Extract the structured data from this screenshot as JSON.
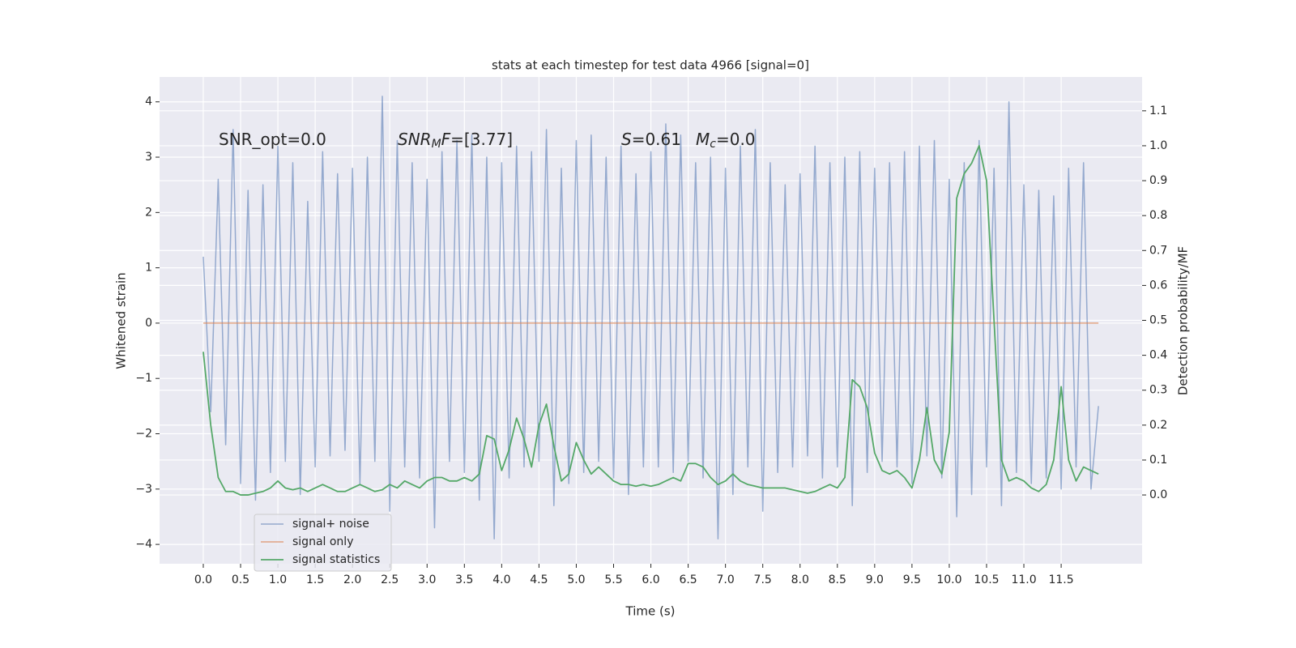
{
  "chart_data": {
    "type": "line",
    "title": "stats at each timestep for test data 4966 [signal=0]",
    "xlabel": "Time (s)",
    "ylabel": "Whitened strain",
    "y2label": "Detection probability/MF",
    "annotations": [
      [
        "SNR_opt=0.0"
      ],
      [
        "SNR",
        "M",
        "F",
        "=[3.77]"
      ],
      [
        "S",
        "=0.61"
      ],
      [
        "M",
        "c",
        "=0.0"
      ]
    ],
    "legend": "lower left",
    "grid": true,
    "xlim": [
      -0.586,
      12.585
    ],
    "ylim": [
      -4.35,
      4.45
    ],
    "y2lim": [
      -0.197,
      1.197
    ],
    "xticks": [
      {
        "value": 0,
        "label": "0.0"
      },
      {
        "value": 0.5,
        "label": "0.5"
      },
      {
        "value": 1,
        "label": "1.0"
      },
      {
        "value": 1.5,
        "label": "1.5"
      },
      {
        "value": 2,
        "label": "2.0"
      },
      {
        "value": 2.5,
        "label": "2.5"
      },
      {
        "value": 3,
        "label": "3.0"
      },
      {
        "value": 3.5,
        "label": "3.5"
      },
      {
        "value": 4,
        "label": "4.0"
      },
      {
        "value": 4.5,
        "label": "4.5"
      },
      {
        "value": 5,
        "label": "5.0"
      },
      {
        "value": 5.5,
        "label": "5.5"
      },
      {
        "value": 6,
        "label": "6.0"
      },
      {
        "value": 6.5,
        "label": "6.5"
      },
      {
        "value": 7,
        "label": "7.0"
      },
      {
        "value": 7.5,
        "label": "7.5"
      },
      {
        "value": 8,
        "label": "8.0"
      },
      {
        "value": 8.5,
        "label": "8.5"
      },
      {
        "value": 9,
        "label": "9.0"
      },
      {
        "value": 9.5,
        "label": "9.5"
      },
      {
        "value": 10,
        "label": "10.0"
      },
      {
        "value": 10.5,
        "label": "10.5"
      },
      {
        "value": 11,
        "label": "11.0"
      },
      {
        "value": 11.5,
        "label": "11.5"
      }
    ],
    "yticks": [
      {
        "value": -4,
        "label": "−4"
      },
      {
        "value": -3,
        "label": "−3"
      },
      {
        "value": -2,
        "label": "−2"
      },
      {
        "value": -1,
        "label": "−1"
      },
      0,
      1,
      2,
      3,
      4
    ],
    "y2ticks": [
      {
        "value": 0,
        "label": "0.0"
      },
      0.1,
      0.2,
      0.3,
      0.4,
      0.5,
      0.6,
      0.7,
      0.8,
      0.9,
      {
        "value": 1,
        "label": "1.0"
      },
      1.1
    ],
    "x": [
      0,
      0.1,
      0.2,
      0.3,
      0.4,
      0.5,
      0.6,
      0.7,
      0.8,
      0.9,
      1,
      1.1,
      1.2,
      1.3,
      1.4,
      1.5,
      1.6,
      1.7,
      1.8,
      1.9,
      2,
      2.1,
      2.2,
      2.3,
      2.4,
      2.5,
      2.6,
      2.7,
      2.8,
      2.9,
      3,
      3.1,
      3.2,
      3.3,
      3.4,
      3.5,
      3.6,
      3.7,
      3.8,
      3.9,
      4,
      4.1,
      4.2,
      4.3,
      4.4,
      4.5,
      4.6,
      4.7,
      4.8,
      4.9,
      5,
      5.1,
      5.2,
      5.3,
      5.4,
      5.5,
      5.6,
      5.7,
      5.8,
      5.9,
      6,
      6.1,
      6.2,
      6.3,
      6.4,
      6.5,
      6.6,
      6.7,
      6.8,
      6.9,
      7,
      7.1,
      7.2,
      7.3,
      7.4,
      7.5,
      7.6,
      7.7,
      7.8,
      7.9,
      8,
      8.1,
      8.2,
      8.3,
      8.4,
      8.5,
      8.6,
      8.7,
      8.8,
      8.9,
      9,
      9.1,
      9.2,
      9.3,
      9.4,
      9.5,
      9.6,
      9.7,
      9.8,
      9.9,
      10,
      10.1,
      10.2,
      10.3,
      10.4,
      10.5,
      10.6,
      10.7,
      10.8,
      10.9,
      11,
      11.1,
      11.2,
      11.3,
      11.4,
      11.5,
      11.6,
      11.7,
      11.8,
      11.9,
      12
    ],
    "series": [
      {
        "name": "signal+ noise",
        "color": "#4c72b0",
        "values": [
          1.2,
          -1.6,
          2.6,
          -2.2,
          3.5,
          -2.9,
          2.4,
          -3.2,
          2.5,
          -2.7,
          3.2,
          -2.5,
          2.9,
          -3.1,
          2.2,
          -2.6,
          3.1,
          -2.4,
          2.7,
          -2.3,
          2.8,
          -2.9,
          3.0,
          -2.5,
          4.1,
          -3.4,
          3.3,
          -2.6,
          2.9,
          -2.8,
          2.6,
          -3.7,
          3.1,
          -2.5,
          3.3,
          -2.7,
          3.4,
          -3.2,
          3.0,
          -3.9,
          2.9,
          -2.8,
          3.2,
          -2.6,
          3.1,
          -2.5,
          3.5,
          -3.3,
          2.8,
          -2.9,
          3.3,
          -2.7,
          3.4,
          -2.5,
          3.0,
          -2.8,
          3.2,
          -3.1,
          2.7,
          -2.6,
          3.1,
          -2.6,
          3.6,
          -2.7,
          3.4,
          -2.5,
          2.9,
          -2.8,
          3.0,
          -3.9,
          2.8,
          -3.1,
          3.2,
          -2.6,
          3.5,
          -3.4,
          2.9,
          -2.7,
          2.5,
          -2.6,
          2.7,
          -2.4,
          3.2,
          -2.8,
          2.9,
          -2.6,
          3.0,
          -3.3,
          3.1,
          -2.7,
          2.8,
          -2.5,
          2.9,
          -2.6,
          3.1,
          -2.9,
          3.2,
          -2.4,
          3.3,
          -2.8,
          2.6,
          -3.5,
          2.9,
          -3.1,
          3.3,
          -2.6,
          2.8,
          -3.3,
          4.0,
          -2.7,
          2.5,
          -2.9,
          2.4,
          -2.8,
          2.3,
          -3.0,
          2.8,
          -2.6,
          2.9,
          -3.0,
          -1.5
        ]
      },
      {
        "name": "signal only",
        "color": "#dd8452",
        "values": [
          0,
          0,
          0,
          0,
          0,
          0,
          0,
          0,
          0,
          0,
          0,
          0,
          0,
          0,
          0,
          0,
          0,
          0,
          0,
          0,
          0,
          0,
          0,
          0,
          0,
          0,
          0,
          0,
          0,
          0,
          0,
          0,
          0,
          0,
          0,
          0,
          0,
          0,
          0,
          0,
          0,
          0,
          0,
          0,
          0,
          0,
          0,
          0,
          0,
          0,
          0,
          0,
          0,
          0,
          0,
          0,
          0,
          0,
          0,
          0,
          0,
          0,
          0,
          0,
          0,
          0,
          0,
          0,
          0,
          0,
          0,
          0,
          0,
          0,
          0,
          0,
          0,
          0,
          0,
          0,
          0,
          0,
          0,
          0,
          0,
          0,
          0,
          0,
          0,
          0,
          0,
          0,
          0,
          0,
          0,
          0,
          0,
          0,
          0,
          0,
          0,
          0,
          0,
          0,
          0,
          0,
          0,
          0,
          0,
          0,
          0,
          0,
          0,
          0,
          0,
          0,
          0,
          0,
          0,
          0,
          0
        ]
      },
      {
        "name": "signal statistics",
        "color": "#55a868",
        "axis": "y2",
        "values": [
          0.41,
          0.2,
          0.05,
          0.01,
          0.01,
          0,
          0,
          0.005,
          0.01,
          0.02,
          0.04,
          0.02,
          0.015,
          0.02,
          0.01,
          0.02,
          0.03,
          0.02,
          0.01,
          0.01,
          0.02,
          0.03,
          0.02,
          0.01,
          0.015,
          0.03,
          0.02,
          0.04,
          0.03,
          0.02,
          0.04,
          0.05,
          0.05,
          0.04,
          0.04,
          0.05,
          0.04,
          0.06,
          0.17,
          0.16,
          0.07,
          0.13,
          0.22,
          0.16,
          0.08,
          0.2,
          0.26,
          0.14,
          0.04,
          0.06,
          0.15,
          0.1,
          0.06,
          0.08,
          0.06,
          0.04,
          0.03,
          0.03,
          0.025,
          0.03,
          0.025,
          0.03,
          0.04,
          0.05,
          0.04,
          0.09,
          0.09,
          0.08,
          0.05,
          0.03,
          0.04,
          0.06,
          0.04,
          0.03,
          0.025,
          0.02,
          0.02,
          0.02,
          0.02,
          0.015,
          0.01,
          0.005,
          0.01,
          0.02,
          0.03,
          0.02,
          0.05,
          0.33,
          0.31,
          0.25,
          0.12,
          0.07,
          0.06,
          0.07,
          0.05,
          0.02,
          0.1,
          0.25,
          0.1,
          0.06,
          0.18,
          0.85,
          0.92,
          0.95,
          1.0,
          0.9,
          0.5,
          0.1,
          0.04,
          0.05,
          0.04,
          0.02,
          0.01,
          0.03,
          0.1,
          0.31,
          0.1,
          0.04,
          0.08,
          0.07,
          0.06
        ]
      }
    ]
  }
}
